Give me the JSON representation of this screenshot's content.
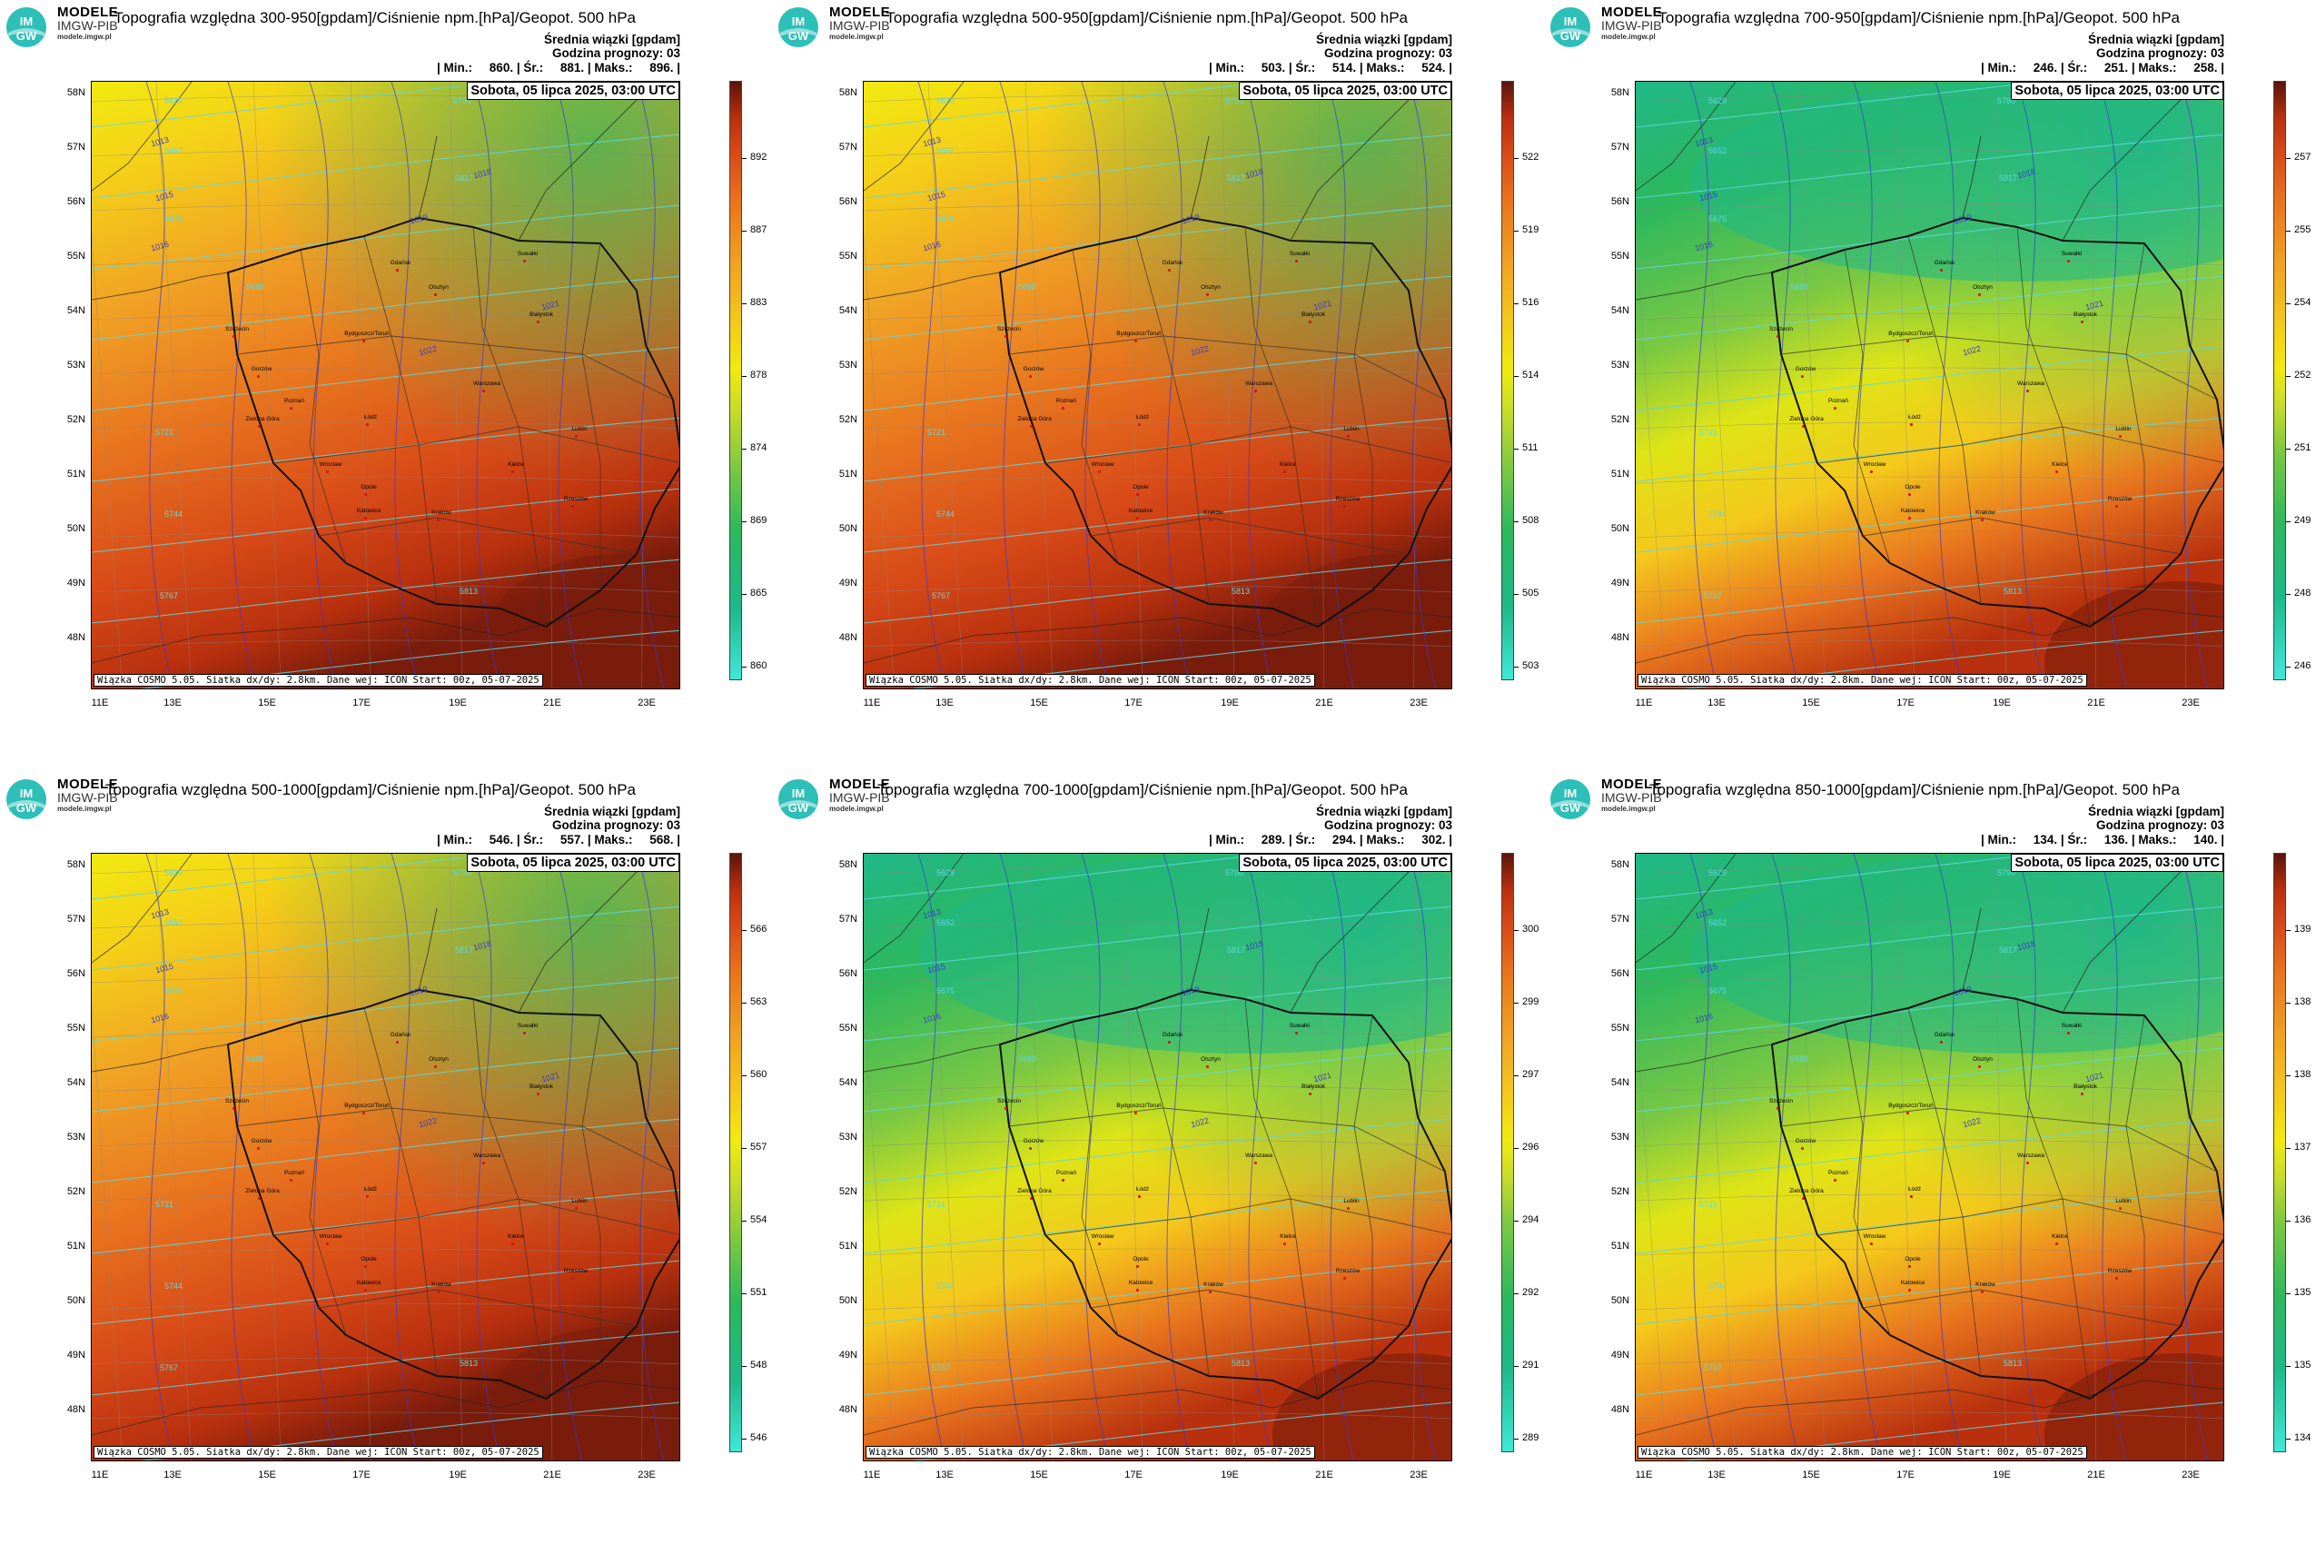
{
  "logo": {
    "line1": "MODELE",
    "line2": "IMGW-PIB",
    "line3": "modele.imgw.pl",
    "badge_top": "IM",
    "badge_bottom": "GW"
  },
  "common": {
    "subtitle": "Średnia wiązki [gpdam]",
    "forecast": "Godzina prognozy: 03",
    "date": "Sobota, 05 lipca 2025, 03:00 UTC",
    "footer": "Wiązka COSMO 5.05. Siatka dx/dy: 2.8km. Dane wej: ICON Start: 00z, 05-07-2025",
    "lat_labels": [
      "58N",
      "57N",
      "56N",
      "55N",
      "54N",
      "53N",
      "52N",
      "51N",
      "50N",
      "49N",
      "48N"
    ],
    "lon_labels": [
      "11E",
      "13E",
      "15E",
      "17E",
      "19E",
      "21E",
      "23E"
    ],
    "cities": [
      "Szczecin",
      "Gdańsk",
      "Olsztyn",
      "Suwałki",
      "Białystok",
      "Bydgoszcz/Toruń",
      "Gorzów",
      "Poznań",
      "Warszawa",
      "Zielona Góra",
      "Łódź",
      "Lublin",
      "Wrocław",
      "Kielce",
      "Opole",
      "Katowice",
      "Kraków",
      "Rzeszów"
    ],
    "isobars": [
      "1013",
      "1015",
      "1016",
      "1018",
      "1019",
      "1021",
      "1022"
    ],
    "geopot_labels": [
      "5629",
      "5652",
      "5675",
      "5698",
      "5721",
      "5744",
      "5767",
      "5790",
      "5813",
      "5817"
    ]
  },
  "panels": [
    {
      "title": "Topografia względna 300-950[gpdam]/Ciśnienie npm.[hPa]/Geopot. 500 hPa",
      "stats": "| Min.:     860. | Śr.:     881. | Maks.:     896. |",
      "colorbar_ticks": [
        "892",
        "887",
        "883",
        "878",
        "874",
        "869",
        "865",
        "860"
      ],
      "palette": "warm"
    },
    {
      "title": "Topografia względna 500-950[gpdam]/Ciśnienie npm.[hPa]/Geopot. 500 hPa",
      "stats": "| Min.:     503. | Śr.:     514. | Maks.:     524. |",
      "colorbar_ticks": [
        "522",
        "519",
        "516",
        "514",
        "511",
        "508",
        "505",
        "503"
      ],
      "palette": "warm"
    },
    {
      "title": "Topografia względna 700-950[gpdam]/Ciśnienie npm.[hPa]/Geopot. 500 hPa",
      "stats": "| Min.:     246. | Śr.:     251. | Maks.:     258. |",
      "colorbar_ticks": [
        "257",
        "255",
        "254",
        "252",
        "251",
        "249",
        "248",
        "246"
      ],
      "palette": "cool"
    },
    {
      "title": "Topografia względna 500-1000[gpdam]/Ciśnienie npm.[hPa]/Geopot. 500 hPa",
      "stats": "| Min.:     546. | Śr.:     557. | Maks.:     568. |",
      "colorbar_ticks": [
        "566",
        "563",
        "560",
        "557",
        "554",
        "551",
        "548",
        "546"
      ],
      "palette": "warm"
    },
    {
      "title": "Topografia względna 700-1000[gpdam]/Ciśnienie npm.[hPa]/Geopot. 500 hPa",
      "stats": "| Min.:     289. | Śr.:     294. | Maks.:     302. |",
      "colorbar_ticks": [
        "300",
        "299",
        "297",
        "296",
        "294",
        "292",
        "291",
        "289"
      ],
      "palette": "cool"
    },
    {
      "title": "Topografia względna 850-1000[gpdam]/Ciśnienie npm.[hPa]/Geopot. 500 hPa",
      "stats": "| Min.:     134. | Śr.:     136. | Maks.:     140. |",
      "colorbar_ticks": [
        "139",
        "138",
        "138",
        "137",
        "136",
        "135",
        "135",
        "134"
      ],
      "palette": "cool"
    }
  ],
  "colors": {
    "scale": [
      "#40e8d8",
      "#1fb888",
      "#2eb85c",
      "#7ac843",
      "#c9dc2a",
      "#f2ea10",
      "#f4c81c",
      "#f0a024",
      "#e8741e",
      "#d84a18",
      "#b8300e",
      "#7a1c0c"
    ],
    "border": "#111111",
    "region_border": "#333333",
    "isobar": "#3b3bd0",
    "geopot": "#5fd8e0",
    "city": "#d01010"
  }
}
